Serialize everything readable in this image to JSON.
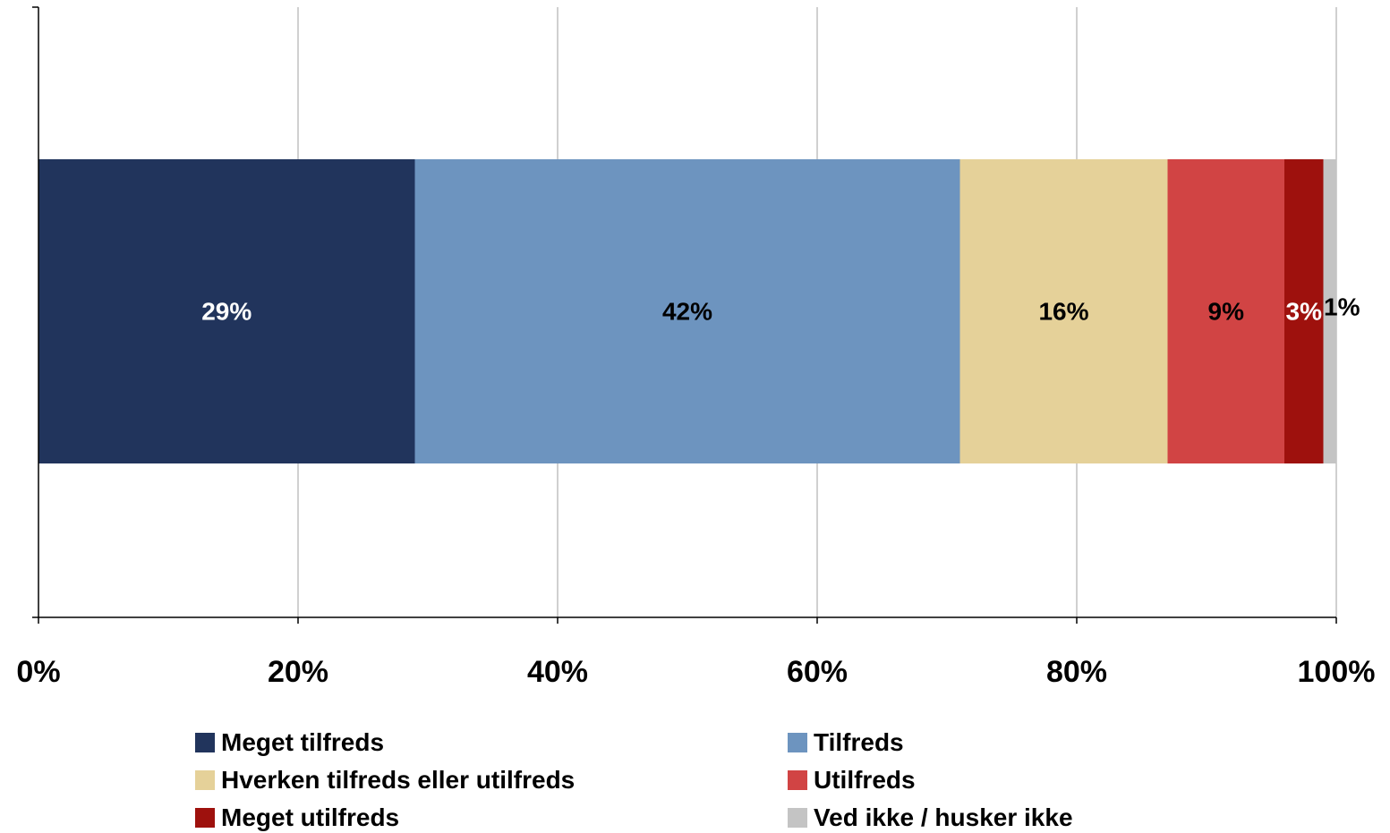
{
  "chart_data": {
    "type": "bar",
    "orientation": "horizontal",
    "stacked": true,
    "series": [
      {
        "name": "Meget tilfreds",
        "value": 29,
        "label": "29%",
        "color": "#21345c",
        "label_color": "#ffffff"
      },
      {
        "name": "Tilfreds",
        "value": 42,
        "label": "42%",
        "color": "#6d94bf",
        "label_color": "#000000"
      },
      {
        "name": "Hverken tilfreds eller utilfreds",
        "value": 16,
        "label": "16%",
        "color": "#e5d199",
        "label_color": "#000000"
      },
      {
        "name": "Utilfreds",
        "value": 9,
        "label": "9%",
        "color": "#d14444",
        "label_color": "#000000"
      },
      {
        "name": "Meget utilfreds",
        "value": 3,
        "label": "3%",
        "color": "#9e110d",
        "label_color": "#ffffff"
      },
      {
        "name": "Ved ikke / husker ikke",
        "value": 1,
        "label": "1%",
        "color": "#c4c4c4",
        "label_color": "#000000"
      }
    ],
    "xlim": [
      0,
      100
    ],
    "x_ticks": [
      0,
      20,
      40,
      60,
      80,
      100
    ],
    "x_tick_labels": [
      "0%",
      "20%",
      "40%",
      "60%",
      "80%",
      "100%"
    ],
    "grid": true,
    "legend_position": "bottom",
    "title": "",
    "xlabel": "",
    "ylabel": ""
  }
}
